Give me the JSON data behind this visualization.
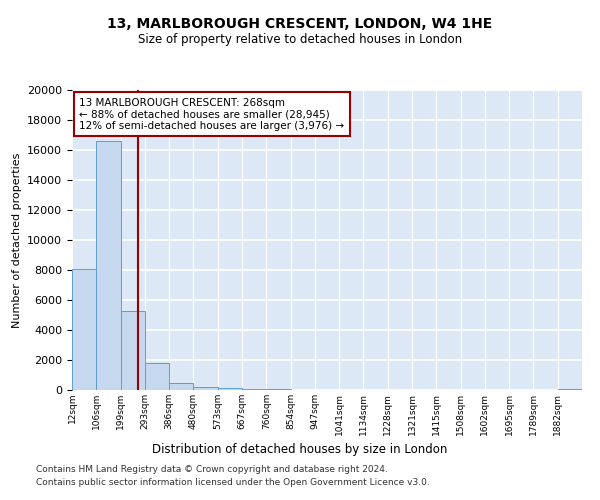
{
  "title": "13, MARLBOROUGH CRESCENT, LONDON, W4 1HE",
  "subtitle": "Size of property relative to detached houses in London",
  "xlabel": "Distribution of detached houses by size in London",
  "ylabel": "Number of detached properties",
  "bar_color": "#c5d8ee",
  "bar_edge_color": "#5a9fd4",
  "background_color": "#dce8f5",
  "grid_color": "#ffffff",
  "bin_labels": [
    "12sqm",
    "106sqm",
    "199sqm",
    "293sqm",
    "386sqm",
    "480sqm",
    "573sqm",
    "667sqm",
    "760sqm",
    "854sqm",
    "947sqm",
    "1041sqm",
    "1134sqm",
    "1228sqm",
    "1321sqm",
    "1415sqm",
    "1508sqm",
    "1602sqm",
    "1695sqm",
    "1789sqm",
    "1882sqm"
  ],
  "values": [
    8050,
    16600,
    5300,
    1820,
    480,
    190,
    130,
    80,
    70,
    0,
    0,
    0,
    0,
    0,
    0,
    0,
    0,
    0,
    0,
    0,
    90
  ],
  "property_size_bar_index": 2.78,
  "annotation_text": "13 MARLBOROUGH CRESCENT: 268sqm\n← 88% of detached houses are smaller (28,945)\n12% of semi-detached houses are larger (3,976) →",
  "vline_color": "#990000",
  "annotation_box_color": "#990000",
  "ylim": [
    0,
    20000
  ],
  "yticks": [
    0,
    2000,
    4000,
    6000,
    8000,
    10000,
    12000,
    14000,
    16000,
    18000,
    20000
  ],
  "footer_line1": "Contains HM Land Registry data © Crown copyright and database right 2024.",
  "footer_line2": "Contains public sector information licensed under the Open Government Licence v3.0."
}
